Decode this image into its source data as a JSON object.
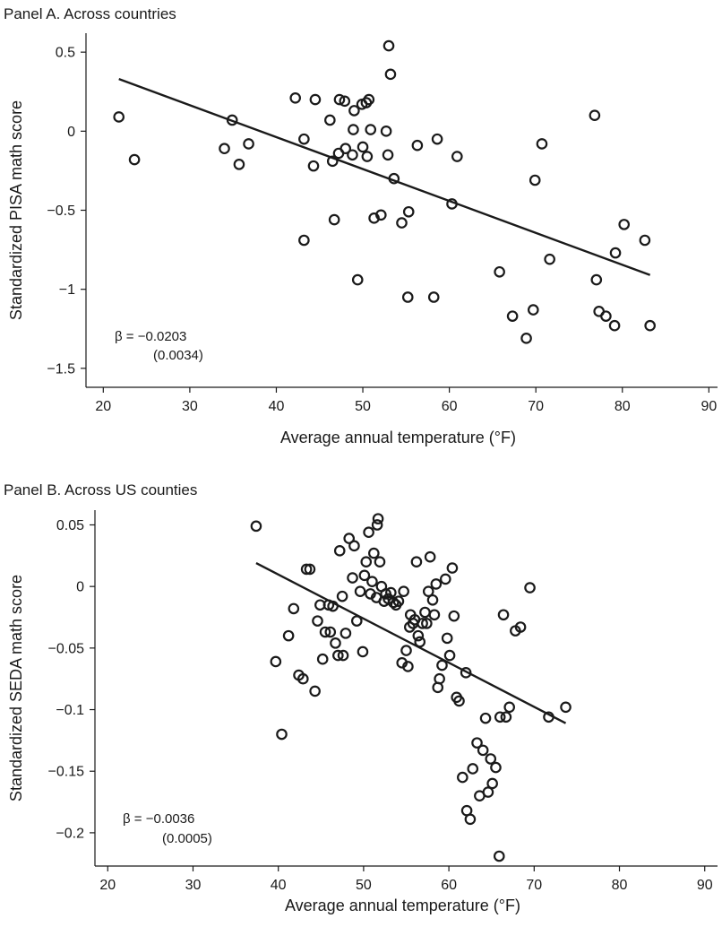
{
  "chart_data": [
    {
      "type": "scatter",
      "title": "Panel A. Across countries",
      "xlabel": "Average annual temperature (°F)",
      "ylabel": "Standardized PISA math score",
      "xlim": [
        18,
        91
      ],
      "ylim": [
        -1.62,
        0.62
      ],
      "xticks": [
        20,
        30,
        40,
        50,
        60,
        70,
        80,
        90
      ],
      "yticks": [
        0.5,
        0,
        -0.5,
        -1,
        -1.5
      ],
      "ytick_labels": [
        "0.5",
        "0",
        "−0.5",
        "−1",
        "−1.5"
      ],
      "beta_label": "β = −0.0203",
      "se_label": "(0.0034)",
      "fit_line": [
        [
          21.8,
          0.33
        ],
        [
          83.2,
          -0.91
        ]
      ],
      "points": [
        [
          21.8,
          0.09
        ],
        [
          23.6,
          -0.18
        ],
        [
          34.0,
          -0.11
        ],
        [
          34.9,
          0.07
        ],
        [
          35.7,
          -0.21
        ],
        [
          36.8,
          -0.08
        ],
        [
          42.2,
          0.21
        ],
        [
          43.2,
          -0.05
        ],
        [
          43.2,
          -0.69
        ],
        [
          44.3,
          -0.22
        ],
        [
          44.5,
          0.2
        ],
        [
          46.2,
          0.07
        ],
        [
          46.5,
          -0.19
        ],
        [
          46.7,
          -0.56
        ],
        [
          47.2,
          -0.14
        ],
        [
          47.3,
          0.2
        ],
        [
          47.9,
          0.19
        ],
        [
          48.0,
          -0.11
        ],
        [
          48.8,
          -0.15
        ],
        [
          48.9,
          0.01
        ],
        [
          49.0,
          0.13
        ],
        [
          49.4,
          -0.94
        ],
        [
          49.9,
          0.17
        ],
        [
          50.0,
          -0.1
        ],
        [
          50.4,
          0.18
        ],
        [
          50.5,
          -0.16
        ],
        [
          50.7,
          0.2
        ],
        [
          50.9,
          0.01
        ],
        [
          51.3,
          -0.55
        ],
        [
          52.1,
          -0.53
        ],
        [
          52.7,
          0.0
        ],
        [
          52.9,
          -0.15
        ],
        [
          53.0,
          0.54
        ],
        [
          53.2,
          0.36
        ],
        [
          53.6,
          -0.3
        ],
        [
          54.5,
          -0.58
        ],
        [
          55.2,
          -1.05
        ],
        [
          55.3,
          -0.51
        ],
        [
          56.3,
          -0.09
        ],
        [
          58.2,
          -1.05
        ],
        [
          58.6,
          -0.05
        ],
        [
          60.3,
          -0.46
        ],
        [
          60.9,
          -0.16
        ],
        [
          65.8,
          -0.89
        ],
        [
          67.3,
          -1.17
        ],
        [
          68.9,
          -1.31
        ],
        [
          69.7,
          -1.13
        ],
        [
          69.9,
          -0.31
        ],
        [
          70.7,
          -0.08
        ],
        [
          71.6,
          -0.81
        ],
        [
          76.8,
          0.1
        ],
        [
          77.0,
          -0.94
        ],
        [
          77.3,
          -1.14
        ],
        [
          78.1,
          -1.17
        ],
        [
          79.1,
          -1.23
        ],
        [
          79.2,
          -0.77
        ],
        [
          80.2,
          -0.59
        ],
        [
          82.6,
          -0.69
        ],
        [
          83.2,
          -1.23
        ]
      ]
    },
    {
      "type": "scatter",
      "title": "Panel B. Across US counties",
      "xlabel": "Average annual temperature (°F)",
      "ylabel": "Standardized SEDA math score",
      "xlim": [
        18.5,
        91.5
      ],
      "ylim": [
        -0.227,
        0.062
      ],
      "xticks": [
        20,
        30,
        40,
        50,
        60,
        70,
        80,
        90
      ],
      "yticks": [
        0.05,
        0,
        -0.05,
        -0.1,
        -0.15,
        -0.2
      ],
      "ytick_labels": [
        "0.05",
        "0",
        "−0.05",
        "−0.1",
        "−0.15",
        "−0.2"
      ],
      "beta_label": "β = −0.0036",
      "se_label": "(0.0005)",
      "fit_line": [
        [
          37.4,
          0.019
        ],
        [
          73.7,
          -0.111
        ]
      ],
      "points": [
        [
          37.4,
          0.049
        ],
        [
          39.7,
          -0.061
        ],
        [
          40.4,
          -0.12
        ],
        [
          41.2,
          -0.04
        ],
        [
          41.8,
          -0.018
        ],
        [
          42.4,
          -0.072
        ],
        [
          42.9,
          -0.075
        ],
        [
          43.3,
          0.014
        ],
        [
          43.7,
          0.014
        ],
        [
          44.3,
          -0.085
        ],
        [
          44.6,
          -0.028
        ],
        [
          44.9,
          -0.015
        ],
        [
          45.2,
          -0.059
        ],
        [
          45.5,
          -0.037
        ],
        [
          45.9,
          -0.015
        ],
        [
          46.1,
          -0.037
        ],
        [
          46.4,
          -0.016
        ],
        [
          46.7,
          -0.046
        ],
        [
          47.0,
          -0.056
        ],
        [
          47.2,
          0.029
        ],
        [
          47.5,
          -0.008
        ],
        [
          47.9,
          -0.038
        ],
        [
          47.6,
          -0.056
        ],
        [
          48.3,
          0.039
        ],
        [
          48.7,
          0.007
        ],
        [
          48.9,
          0.033
        ],
        [
          49.2,
          -0.028
        ],
        [
          49.6,
          -0.004
        ],
        [
          49.9,
          -0.053
        ],
        [
          50.1,
          0.009
        ],
        [
          50.3,
          0.02
        ],
        [
          50.6,
          0.044
        ],
        [
          50.8,
          -0.006
        ],
        [
          51.0,
          0.004
        ],
        [
          51.2,
          0.027
        ],
        [
          51.5,
          -0.009
        ],
        [
          51.6,
          0.05
        ],
        [
          51.7,
          0.055
        ],
        [
          51.9,
          0.02
        ],
        [
          52.1,
          0.0
        ],
        [
          52.4,
          -0.012
        ],
        [
          52.6,
          -0.006
        ],
        [
          52.9,
          -0.01
        ],
        [
          53.2,
          -0.005
        ],
        [
          53.5,
          -0.013
        ],
        [
          53.8,
          -0.015
        ],
        [
          54.1,
          -0.012
        ],
        [
          54.5,
          -0.062
        ],
        [
          54.7,
          -0.004
        ],
        [
          55.0,
          -0.052
        ],
        [
          55.2,
          -0.065
        ],
        [
          55.4,
          -0.033
        ],
        [
          55.5,
          -0.023
        ],
        [
          55.8,
          -0.03
        ],
        [
          56.0,
          -0.027
        ],
        [
          56.2,
          0.02
        ],
        [
          56.4,
          -0.04
        ],
        [
          56.6,
          -0.045
        ],
        [
          56.9,
          -0.03
        ],
        [
          57.2,
          -0.021
        ],
        [
          57.4,
          -0.03
        ],
        [
          57.6,
          -0.004
        ],
        [
          57.8,
          0.024
        ],
        [
          58.1,
          -0.011
        ],
        [
          58.3,
          -0.023
        ],
        [
          58.5,
          0.002
        ],
        [
          58.7,
          -0.082
        ],
        [
          58.9,
          -0.075
        ],
        [
          59.2,
          -0.064
        ],
        [
          59.6,
          0.006
        ],
        [
          59.8,
          -0.042
        ],
        [
          60.1,
          -0.056
        ],
        [
          60.4,
          0.015
        ],
        [
          60.6,
          -0.024
        ],
        [
          60.9,
          -0.09
        ],
        [
          61.2,
          -0.093
        ],
        [
          61.6,
          -0.155
        ],
        [
          62.0,
          -0.07
        ],
        [
          62.1,
          -0.182
        ],
        [
          62.5,
          -0.189
        ],
        [
          62.8,
          -0.148
        ],
        [
          63.3,
          -0.127
        ],
        [
          63.6,
          -0.17
        ],
        [
          64.0,
          -0.133
        ],
        [
          64.3,
          -0.107
        ],
        [
          64.6,
          -0.167
        ],
        [
          64.9,
          -0.14
        ],
        [
          65.1,
          -0.16
        ],
        [
          65.5,
          -0.147
        ],
        [
          65.9,
          -0.219
        ],
        [
          66.0,
          -0.106
        ],
        [
          66.4,
          -0.023
        ],
        [
          66.7,
          -0.106
        ],
        [
          67.1,
          -0.098
        ],
        [
          67.8,
          -0.036
        ],
        [
          68.4,
          -0.033
        ],
        [
          69.5,
          -0.001
        ],
        [
          71.7,
          -0.106
        ],
        [
          73.7,
          -0.098
        ]
      ]
    }
  ]
}
